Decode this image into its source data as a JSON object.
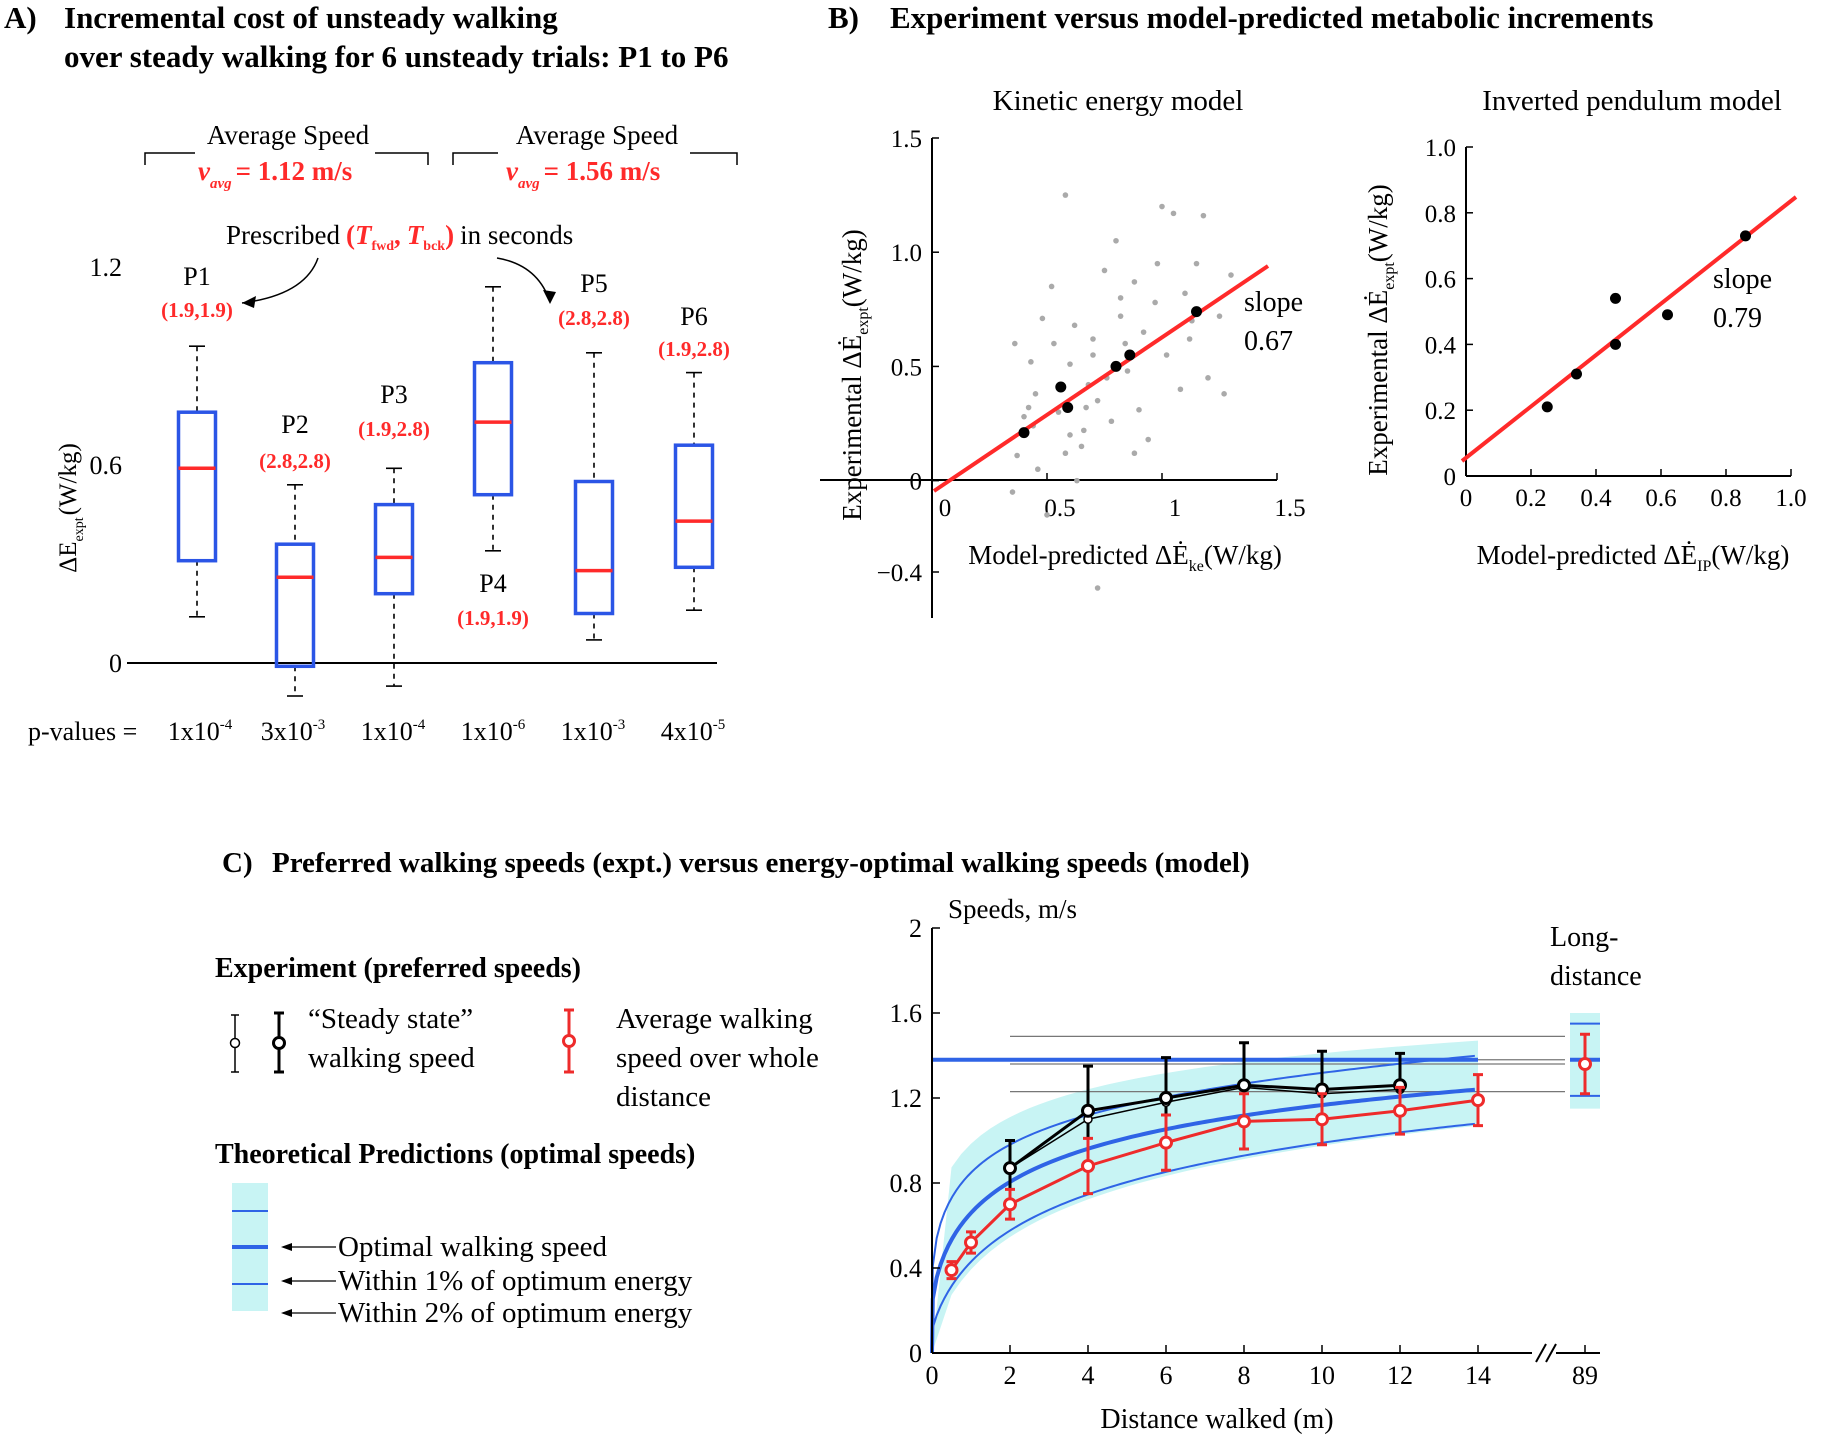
{
  "panelA": {
    "label": "A)",
    "title_line1": "Incremental cost of unsteady walking",
    "title_line2": "over steady walking for 6 unsteady trials: P1 to P6",
    "speed_group1": {
      "label": "Average Speed",
      "value": "= 1.12 m/s",
      "symbol": "v",
      "sub": "avg"
    },
    "speed_group2": {
      "label": "Average Speed",
      "value": "= 1.56 m/s",
      "symbol": "v",
      "sub": "avg"
    },
    "prescribed": {
      "prefix": "Prescribed",
      "open": "(",
      "t1": "T",
      "t1_sub": "fwd",
      "comma": ",",
      "t2": "T",
      "t2_sub": "bck",
      "close": ")",
      "suffix": "in seconds"
    },
    "ylabel_prefix": "ΔE",
    "ylabel_sub": "expt",
    "ylabel_unit": "(W/kg)",
    "p_values_label": "p-values =",
    "colors": {
      "box": "#2b55e6",
      "median": "#ff2a2a",
      "label": "#ff2a2a"
    }
  },
  "panelB": {
    "label": "B)",
    "title": "Experiment versus model-predicted metabolic increments",
    "colors": {
      "fit": "#ff2a2a",
      "points": "#000000",
      "cloud": "#aaaaaa"
    }
  },
  "panelC": {
    "label": "C)",
    "title": "Preferred walking speeds (expt.) versus energy-optimal walking speeds (model)",
    "experiment_heading": "Experiment (preferred speeds)",
    "steady_label_line1": "“Steady state”",
    "steady_label_line2": "walking speed",
    "avg_label_line1": "Average walking",
    "avg_label_line2": "speed over whole",
    "avg_label_line3": "distance",
    "theory_heading": "Theoretical Predictions (optimal speeds)",
    "legend_optimal": "Optimal walking speed",
    "legend_1pct": "Within 1% of optimum energy",
    "legend_2pct": "Within 2% of optimum energy",
    "colors": {
      "band": "#c8f4f4",
      "optimal": "#2f64e6",
      "steady": "#000000",
      "average": "#ee2b2b"
    }
  },
  "chart_data": [
    {
      "id": "A",
      "type": "box",
      "ylabel": "ΔE expt (W/kg)",
      "ylim": [
        0,
        1.2
      ],
      "yticks": [
        "0",
        "0.6",
        "1.2"
      ],
      "categories": [
        "P1",
        "P2",
        "P3",
        "P4",
        "P5",
        "P6"
      ],
      "prescribed": [
        "(1.9,1.9)",
        "(2.8,2.8)",
        "(1.9,2.8)",
        "(1.9,1.9)",
        "(2.8,2.8)",
        "(1.9,2.8)"
      ],
      "boxes": [
        {
          "whisker_low": 0.14,
          "q1": 0.31,
          "median": 0.59,
          "q3": 0.76,
          "whisker_high": 0.96
        },
        {
          "whisker_low": -0.1,
          "q1": -0.01,
          "median": 0.26,
          "q3": 0.36,
          "whisker_high": 0.54
        },
        {
          "whisker_low": -0.07,
          "q1": 0.21,
          "median": 0.32,
          "q3": 0.48,
          "whisker_high": 0.59
        },
        {
          "whisker_low": 0.34,
          "q1": 0.51,
          "median": 0.73,
          "q3": 0.91,
          "whisker_high": 1.14
        },
        {
          "whisker_low": 0.07,
          "q1": 0.15,
          "median": 0.28,
          "q3": 0.55,
          "whisker_high": 0.94
        },
        {
          "whisker_low": 0.16,
          "q1": 0.29,
          "median": 0.43,
          "q3": 0.66,
          "whisker_high": 0.88
        }
      ],
      "p_values": [
        {
          "mantissa": "1x10",
          "exp": "-4"
        },
        {
          "mantissa": "3x10",
          "exp": "-3"
        },
        {
          "mantissa": "1x10",
          "exp": "-4"
        },
        {
          "mantissa": "1x10",
          "exp": "-6"
        },
        {
          "mantissa": "1x10",
          "exp": "-3"
        },
        {
          "mantissa": "4x10",
          "exp": "-5"
        }
      ]
    },
    {
      "id": "B1",
      "type": "scatter",
      "title": "Kinetic energy model",
      "xlabel_text": "Model-predicted ΔĖ",
      "xlabel_sub": "ke",
      "xlabel_unit": "(W/kg)",
      "ylabel_text": "Experimental ΔĖ",
      "ylabel_sub": "expt",
      "ylabel_unit": "(W/kg)",
      "xlim": [
        0,
        1.5
      ],
      "ylim": [
        -0.4,
        1.5
      ],
      "xticks": [
        "0",
        "0.5",
        "1",
        "1.5"
      ],
      "yticks": [
        "−0.4",
        "0",
        "0.5",
        "1.0",
        "1.5"
      ],
      "slope_label": "slope",
      "slope_value": "0.67",
      "mean_points": [
        [
          0.4,
          0.21
        ],
        [
          0.56,
          0.41
        ],
        [
          0.59,
          0.32
        ],
        [
          0.8,
          0.5
        ],
        [
          0.86,
          0.55
        ],
        [
          1.15,
          0.74
        ]
      ],
      "cloud": [
        [
          0.36,
          0.6
        ],
        [
          0.42,
          0.32
        ],
        [
          0.37,
          0.11
        ],
        [
          0.44,
          0.24
        ],
        [
          0.48,
          0.71
        ],
        [
          0.45,
          0.38
        ],
        [
          0.52,
          0.85
        ],
        [
          0.58,
          1.25
        ],
        [
          0.55,
          0.3
        ],
        [
          0.6,
          0.51
        ],
        [
          0.62,
          0.68
        ],
        [
          0.65,
          0.15
        ],
        [
          0.68,
          0.42
        ],
        [
          0.66,
          0.22
        ],
        [
          0.7,
          0.62
        ],
        [
          0.72,
          0.35
        ],
        [
          0.75,
          0.92
        ],
        [
          0.78,
          0.26
        ],
        [
          0.8,
          1.05
        ],
        [
          0.82,
          0.72
        ],
        [
          0.85,
          0.48
        ],
        [
          0.88,
          0.87
        ],
        [
          0.9,
          0.31
        ],
        [
          0.92,
          0.65
        ],
        [
          0.94,
          0.18
        ],
        [
          0.97,
          0.78
        ],
        [
          1.0,
          1.2
        ],
        [
          1.02,
          0.55
        ],
        [
          1.05,
          1.17
        ],
        [
          1.08,
          0.4
        ],
        [
          1.1,
          0.82
        ],
        [
          1.12,
          0.62
        ],
        [
          1.15,
          0.95
        ],
        [
          1.18,
          1.16
        ],
        [
          1.2,
          0.45
        ],
        [
          1.25,
          0.72
        ],
        [
          1.27,
          0.38
        ],
        [
          1.3,
          0.9
        ],
        [
          0.5,
          -0.15
        ],
        [
          0.46,
          0.05
        ],
        [
          0.4,
          0.28
        ],
        [
          0.35,
          -0.05
        ],
        [
          0.63,
          0.0
        ],
        [
          0.72,
          -0.47
        ],
        [
          0.88,
          0.12
        ],
        [
          0.6,
          0.2
        ],
        [
          0.7,
          0.55
        ],
        [
          0.98,
          0.95
        ],
        [
          0.53,
          0.6
        ],
        [
          0.58,
          0.12
        ],
        [
          0.82,
          0.8
        ],
        [
          0.43,
          0.52
        ],
        [
          1.13,
          0.7
        ],
        [
          0.76,
          0.45
        ],
        [
          0.67,
          0.32
        ],
        [
          0.84,
          0.6
        ]
      ]
    },
    {
      "id": "B2",
      "type": "scatter",
      "title": "Inverted pendulum model",
      "xlabel_text": "Model-predicted ΔĖ",
      "xlabel_sub": "IP",
      "xlabel_unit": "(W/kg)",
      "ylabel_text": "Experimental ΔĖ",
      "ylabel_sub": "expt",
      "ylabel_unit": "(W/kg)",
      "xlim": [
        0,
        1.0
      ],
      "ylim": [
        0,
        1.0
      ],
      "xticks": [
        "0",
        "0.2",
        "0.4",
        "0.6",
        "0.8",
        "1.0"
      ],
      "yticks": [
        "0",
        "0.2",
        "0.4",
        "0.6",
        "0.8",
        "1.0"
      ],
      "slope_label": "slope",
      "slope_value": "0.79",
      "points": [
        [
          0.25,
          0.21
        ],
        [
          0.34,
          0.31
        ],
        [
          0.46,
          0.4
        ],
        [
          0.46,
          0.54
        ],
        [
          0.62,
          0.49
        ],
        [
          0.86,
          0.73
        ]
      ]
    },
    {
      "id": "C",
      "type": "line",
      "ylabel": "Speeds, m/s",
      "xlabel": "Distance walked (m)",
      "xticks": [
        "0",
        "2",
        "4",
        "6",
        "8",
        "10",
        "12",
        "14",
        "89"
      ],
      "yticks": [
        "0",
        "0.4",
        "0.8",
        "1.2",
        "1.6",
        "2"
      ],
      "ylim": [
        0,
        2
      ],
      "long_distance_label_line1": "Long-",
      "long_distance_label_line2": "distance",
      "steady_state": {
        "x": [
          2,
          4,
          6,
          8,
          10,
          12
        ],
        "y": [
          0.87,
          1.14,
          1.2,
          1.26,
          1.24,
          1.26
        ],
        "err": [
          0.13,
          0.21,
          0.19,
          0.2,
          0.18,
          0.15
        ]
      },
      "steady_state_open": {
        "x": [
          2,
          4,
          6,
          8,
          10,
          12
        ],
        "y": [
          0.87,
          1.1,
          1.18,
          1.25,
          1.22,
          1.24
        ]
      },
      "average_speed": {
        "x": [
          0.5,
          1,
          2,
          4,
          6,
          8,
          10,
          12,
          14
        ],
        "y": [
          0.39,
          0.52,
          0.7,
          0.88,
          0.99,
          1.09,
          1.1,
          1.14,
          1.19
        ],
        "err": [
          0.04,
          0.05,
          0.07,
          0.13,
          0.13,
          0.13,
          0.12,
          0.11,
          0.12
        ]
      },
      "long_distance": {
        "x": 89,
        "optimal": 1.38,
        "within1": [
          1.21,
          1.55
        ],
        "band": [
          1.15,
          1.6
        ],
        "measured": 1.36,
        "err": 0.14
      },
      "reference_lines": [
        1.49,
        1.38,
        1.36,
        1.23
      ]
    }
  ]
}
